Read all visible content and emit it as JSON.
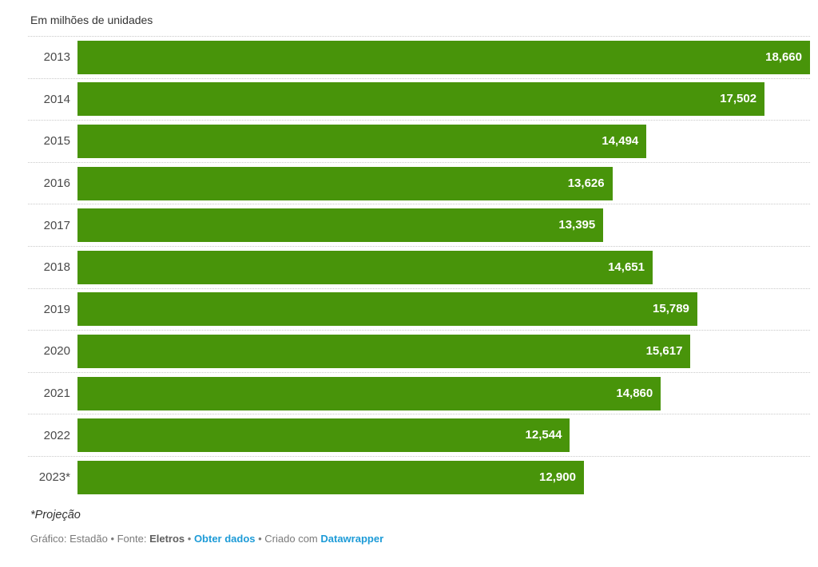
{
  "chart_data": {
    "type": "bar",
    "orientation": "horizontal",
    "title": "Em milhões de unidades",
    "categories": [
      "2013",
      "2014",
      "2015",
      "2016",
      "2017",
      "2018",
      "2019",
      "2020",
      "2021",
      "2022",
      "2023*"
    ],
    "values": [
      18660,
      17502,
      14494,
      13626,
      13395,
      14651,
      15789,
      15617,
      14860,
      12544,
      12900
    ],
    "value_labels": [
      "18,660",
      "17,502",
      "14,494",
      "13,626",
      "13,395",
      "14,651",
      "15,789",
      "15,617",
      "14,860",
      "12,544",
      "12,900"
    ],
    "xlim": [
      0,
      18660
    ],
    "bar_color": "#48940a",
    "value_label_color": "#ffffff",
    "grid": "dotted row separators, no x-axis",
    "legend": "none"
  },
  "footer": {
    "note": "*Projeção",
    "attribution_prefix": "Gráfico: Estadão • Fonte: ",
    "source_name": "Eletros",
    "sep1": " • ",
    "get_data_link": "Obter dados",
    "sep2": " • ",
    "created_prefix": "Criado com ",
    "tool_link": "Datawrapper"
  },
  "colors": {
    "bar": "#48940a",
    "link": "#1d9bd7",
    "title_text": "#333333",
    "axis_text": "#4a4a4a",
    "muted_text": "#7a7a7a",
    "separator": "#c9c9c9"
  }
}
